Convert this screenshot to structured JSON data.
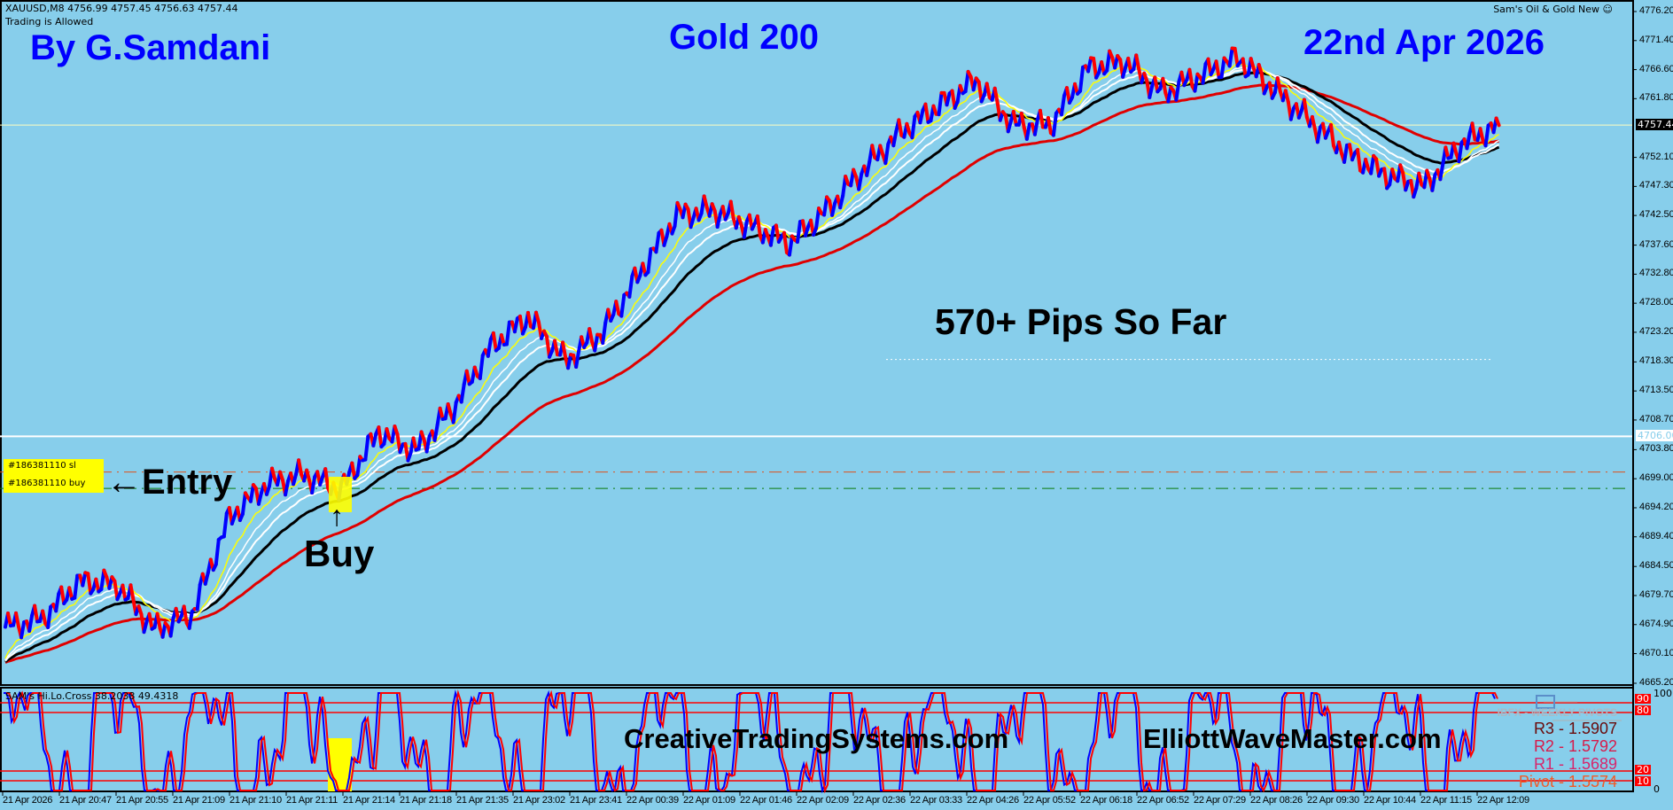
{
  "header": {
    "symbol_info": "XAUUSD,M8  4756.99 4757.45 4756.63 4757.44",
    "trading_status": "Trading is Allowed",
    "indicator_name": "Sam's Oil & Gold New",
    "smiley_icon": "smiley-face-icon"
  },
  "annotations": {
    "author": "By G.Samdani",
    "title": "Gold 200",
    "date": "22nd Apr 2026",
    "result": "570+ Pips So Far",
    "entry": "←Entry",
    "buy_arrow": "↑",
    "buy": "Buy",
    "site1": "CreativeTradingSystems.com",
    "site2": "ElliottWaveMaster.com"
  },
  "orders": {
    "sl_label": "#186381110 sl",
    "buy_label": "#186381110 buy"
  },
  "price_axis": {
    "labels": [
      "4776.20",
      "4771.40",
      "4766.60",
      "4761.80",
      "4752.10",
      "4747.30",
      "4742.50",
      "4737.60",
      "4732.80",
      "4728.00",
      "4723.20",
      "4718.30",
      "4713.50",
      "4708.70",
      "4703.80",
      "4699.00",
      "4694.20",
      "4689.40",
      "4684.50",
      "4679.70",
      "4674.90",
      "4670.10",
      "4665.20"
    ],
    "current_price": "4757.44",
    "level_price": "4706.00"
  },
  "time_axis": {
    "labels": [
      "21 Apr 2026",
      "21 Apr 20:47",
      "21 Apr 20:55",
      "21 Apr 21:09",
      "21 Apr 21:10",
      "21 Apr 21:11",
      "21 Apr 21:14",
      "21 Apr 21:18",
      "21 Apr 21:35",
      "21 Apr 23:02",
      "21 Apr 23:41",
      "22 Apr 00:39",
      "22 Apr 01:09",
      "22 Apr 01:46",
      "22 Apr 02:09",
      "22 Apr 02:36",
      "22 Apr 03:33",
      "22 Apr 04:26",
      "22 Apr 05:52",
      "22 Apr 06:18",
      "22 Apr 06:52",
      "22 Apr 07:29",
      "22 Apr 08:26",
      "22 Apr 09:30",
      "22 Apr 10:44",
      "22 Apr 11:15",
      "22 Apr 12:09"
    ]
  },
  "oscillator": {
    "label": "SAM's Hi.Lo.Cross 38.2038 49.4318",
    "levels": [
      "90",
      "80",
      "20",
      "10"
    ],
    "scale_top": "100",
    "scale_bottom": "0"
  },
  "pivots": {
    "title": "IBFX - WEEKLY PIVOTS",
    "r3": "R3 - 1.5907",
    "r2": "R2 - 1.5792",
    "r1": "R1 - 1.5689",
    "pivot": "Pivot - 1.5574"
  },
  "colors": {
    "background": "#87ceeb",
    "up": "#0000ff",
    "down": "#ff0000",
    "ma_fast": "#ffff00",
    "ma_mid": "#ffffff",
    "ma_slow": "#000000",
    "ma_slowest": "#e00000",
    "highlight": "#ffff00"
  },
  "chart_data": {
    "type": "line",
    "symbol": "XAUUSD",
    "timeframe": "M8",
    "ylim": [
      4665.2,
      4776.2
    ],
    "close_path": [
      4674.5,
      4675.9,
      4682.0,
      4681.5,
      4674.1,
      4676.6,
      4692.5,
      4698.1,
      4699.7,
      4697.3,
      4706.7,
      4703.6,
      4710.8,
      4720.7,
      4725.7,
      4718.5,
      4723.3,
      4733.0,
      4742.6,
      4743.4,
      4740.7,
      4737.9,
      4743.4,
      4750.2,
      4756.3,
      4760.6,
      4764.8,
      4757.5,
      4757.4,
      4766.9,
      4767.9,
      4762.7,
      4765.6,
      4768.6,
      4763.2,
      4757.9,
      4752.5,
      4749.2,
      4747.3,
      4754.4,
      4757.4
    ],
    "horizontal_lines": {
      "current": 4757.44,
      "level": 4706.0,
      "target_dotted": 4718.7,
      "stop_loss": 4700.1,
      "entry": 4697.4
    },
    "oscillator_range": [
      0,
      100
    ],
    "oscillator_levels": [
      90,
      80,
      20,
      10
    ]
  }
}
